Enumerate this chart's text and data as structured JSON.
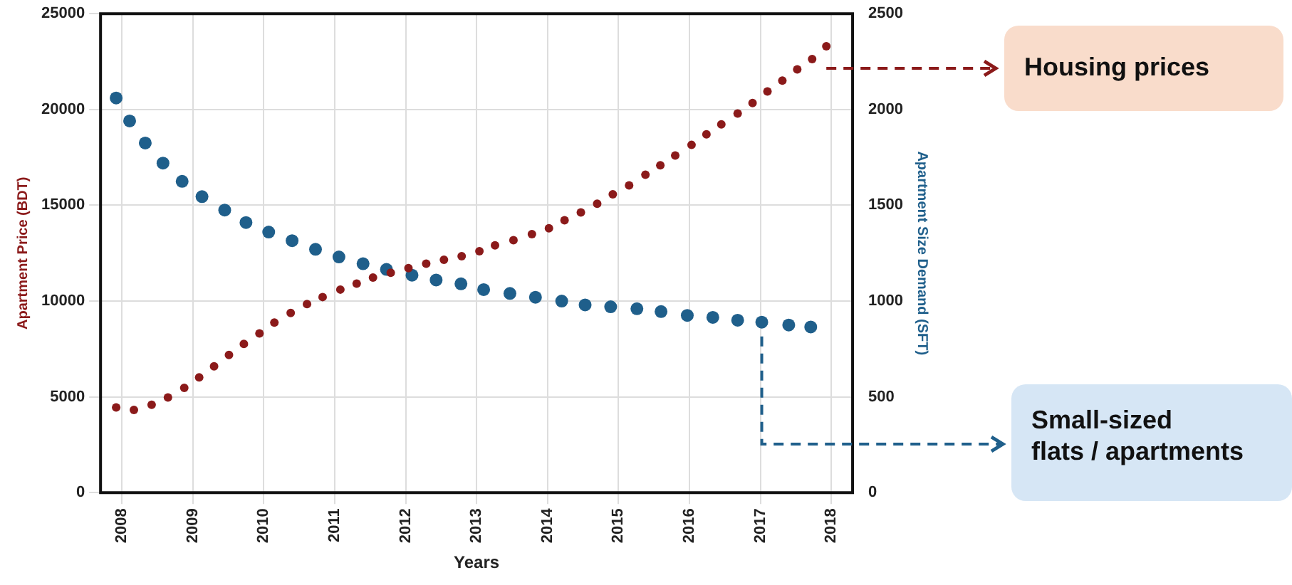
{
  "chart_data": {
    "type": "scatter",
    "xlabel": "Years",
    "ylabel": "Apartment Price (BDT)",
    "y2label": "Apartment Size Demand (SFT)",
    "xlim": [
      2007.7,
      2018.3
    ],
    "xticks": [
      2008,
      2009,
      2010,
      2011,
      2012,
      2013,
      2014,
      2015,
      2016,
      2017,
      2018
    ],
    "ylim": [
      0,
      25000
    ],
    "yticks": [
      0,
      5000,
      10000,
      15000,
      20000,
      25000
    ],
    "y2lim": [
      0,
      2500
    ],
    "y2ticks": [
      0,
      500,
      1000,
      1500,
      2000,
      2500
    ],
    "grid": true,
    "legend": false,
    "marker": "circle",
    "series": [
      {
        "color": "#8b1a1a",
        "x": [
          2007.92,
          2008.17,
          2008.42,
          2008.65,
          2008.88,
          2009.09,
          2009.3,
          2009.51,
          2009.72,
          2009.94,
          2010.15,
          2010.38,
          2010.61,
          2010.83,
          2011.08,
          2011.31,
          2011.54,
          2011.79,
          2012.04,
          2012.29,
          2012.54,
          2012.79,
          2013.04,
          2013.26,
          2013.52,
          2013.78,
          2014.02,
          2014.24,
          2014.47,
          2014.7,
          2014.92,
          2015.15,
          2015.38,
          2015.59,
          2015.8,
          2016.03,
          2016.24,
          2016.45,
          2016.68,
          2016.89,
          2017.1,
          2017.31,
          2017.52,
          2017.73,
          2017.93
        ],
        "values": [
          4450,
          4320,
          4590,
          4970,
          5470,
          6020,
          6590,
          7190,
          7760,
          8310,
          8880,
          9380,
          9840,
          10210,
          10600,
          10910,
          11230,
          11480,
          11720,
          11950,
          12160,
          12340,
          12600,
          12910,
          13180,
          13490,
          13800,
          14220,
          14630,
          15080,
          15570,
          16040,
          16590,
          17090,
          17600,
          18150,
          18700,
          19220,
          19790,
          20340,
          20940,
          21510,
          22090,
          22630,
          23300
        ]
      },
      {
        "color": "#1f5f8b",
        "axis": "y2",
        "x": [
          2007.92,
          2008.11,
          2008.33,
          2008.58,
          2008.85,
          2009.13,
          2009.45,
          2009.75,
          2010.07,
          2010.4,
          2010.73,
          2011.06,
          2011.4,
          2011.73,
          2012.09,
          2012.43,
          2012.78,
          2013.1,
          2013.47,
          2013.83,
          2014.2,
          2014.53,
          2014.89,
          2015.26,
          2015.6,
          2015.97,
          2016.33,
          2016.68,
          2017.02,
          2017.4,
          2017.71
        ],
        "values": [
          2060,
          1940,
          1825,
          1720,
          1625,
          1545,
          1475,
          1410,
          1360,
          1315,
          1270,
          1230,
          1195,
          1165,
          1135,
          1110,
          1090,
          1060,
          1040,
          1020,
          1000,
          980,
          970,
          960,
          945,
          925,
          915,
          900,
          890,
          875,
          865
        ]
      }
    ],
    "annotations": [
      "Housing prices",
      "Small-sized flats / apartments"
    ]
  }
}
